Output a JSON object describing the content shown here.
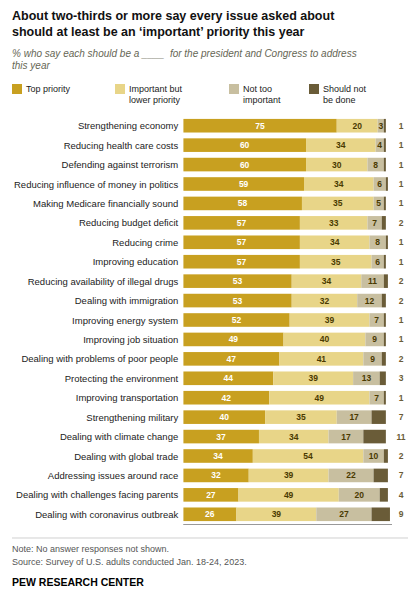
{
  "chart_data": {
    "type": "bar",
    "orientation": "horizontal",
    "stacked": true,
    "title": "About two-thirds or more say every issue asked about\nshould at least be an ‘important’ priority this year",
    "subtitle": "% who say each should be a ____  for the president and Congress to address\nthis year",
    "categories": [
      "Strengthening economy",
      "Reducing health care costs",
      "Defending against terrorism",
      "Reducing influence of money in politics",
      "Making Medicare financially sound",
      "Reducing budget deficit",
      "Reducing crime",
      "Improving education",
      "Reducing availability of illegal drugs",
      "Dealing with immigration",
      "Improving energy system",
      "Improving job situation",
      "Dealing with problems of poor people",
      "Protecting the environment",
      "Improving transportation",
      "Strengthening military",
      "Dealing with climate change",
      "Dealing with global trade",
      "Addressing issues around race",
      "Dealing with challenges facing parents",
      "Dealing with coronavirus outbreak"
    ],
    "series": [
      {
        "name": "Top priority",
        "color": "#C8A020",
        "values": [
          75,
          60,
          60,
          59,
          58,
          57,
          57,
          57,
          53,
          53,
          52,
          49,
          47,
          44,
          42,
          40,
          37,
          34,
          32,
          27,
          26
        ]
      },
      {
        "name": "Important but\nlower priority",
        "color": "#E8D588",
        "values": [
          20,
          34,
          30,
          34,
          35,
          33,
          34,
          35,
          34,
          32,
          39,
          40,
          41,
          39,
          49,
          35,
          34,
          54,
          39,
          49,
          39
        ]
      },
      {
        "name": "Not too\nimportant",
        "color": "#C8BFA0",
        "values": [
          3,
          4,
          8,
          6,
          5,
          7,
          8,
          6,
          11,
          12,
          7,
          9,
          9,
          13,
          7,
          17,
          17,
          10,
          22,
          20,
          27
        ]
      },
      {
        "name": "Should not\nbe done",
        "color": "#6A5C38",
        "values": [
          1,
          1,
          1,
          1,
          1,
          2,
          1,
          1,
          2,
          2,
          1,
          1,
          2,
          3,
          1,
          7,
          11,
          2,
          7,
          4,
          9
        ]
      }
    ],
    "xlim": [
      0,
      102
    ],
    "xticks": [],
    "tick_labels": "y",
    "grid": false,
    "legend": "top",
    "data_labels": true,
    "annotations": [
      "Note: No answer responses not shown.",
      "Source: Survey of U.S. adults conducted Jan. 18-24, 2023.",
      "PEW RESEARCH CENTER"
    ]
  }
}
